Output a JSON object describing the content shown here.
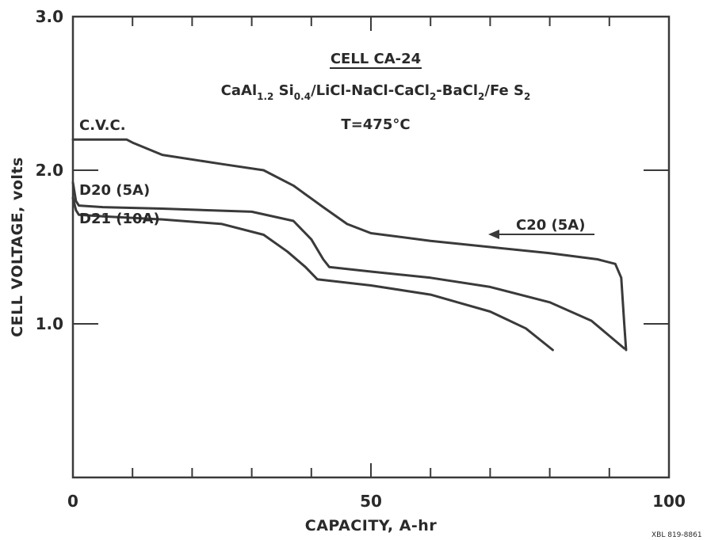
{
  "chart_data": {
    "type": "line",
    "title_lines": [
      "CELL CA-24",
      "CaAl1.2Si0.4/LiCl-NaCl-CaCl2-BaCl2/FeS2",
      "T=475°C"
    ],
    "xlabel": "CAPACITY, A-hr",
    "ylabel": "CELL VOLTAGE, volts",
    "xlim": [
      0,
      100
    ],
    "ylim": [
      0,
      3.0
    ],
    "x_ticks": [
      {
        "value": 0,
        "label": "0"
      },
      {
        "value": 50,
        "label": "50"
      },
      {
        "value": 100,
        "label": "100"
      }
    ],
    "y_ticks": [
      {
        "value": 1.0,
        "label": "1.0"
      },
      {
        "value": 2.0,
        "label": "2.0"
      },
      {
        "value": 3.0,
        "label": "3.0"
      }
    ],
    "grid": false,
    "series": [
      {
        "name": "C20 (5A)",
        "direction_arrow": "left",
        "points": [
          [
            0,
            2.2
          ],
          [
            9,
            2.2
          ],
          [
            10,
            2.18
          ],
          [
            15,
            2.1
          ],
          [
            25,
            2.04
          ],
          [
            32,
            2.0
          ],
          [
            37,
            1.9
          ],
          [
            42,
            1.76
          ],
          [
            46,
            1.65
          ],
          [
            50,
            1.59
          ],
          [
            60,
            1.54
          ],
          [
            70,
            1.5
          ],
          [
            80,
            1.46
          ],
          [
            88,
            1.42
          ],
          [
            91,
            1.39
          ],
          [
            92,
            1.3
          ],
          [
            92.5,
            1.0
          ],
          [
            92.8,
            0.83
          ]
        ]
      },
      {
        "name": "D20 (5A)",
        "points": [
          [
            0,
            1.92
          ],
          [
            0.5,
            1.8
          ],
          [
            1,
            1.77
          ],
          [
            5,
            1.76
          ],
          [
            15,
            1.75
          ],
          [
            30,
            1.73
          ],
          [
            37,
            1.67
          ],
          [
            40,
            1.55
          ],
          [
            42,
            1.42
          ],
          [
            43,
            1.37
          ],
          [
            50,
            1.34
          ],
          [
            60,
            1.3
          ],
          [
            70,
            1.24
          ],
          [
            80,
            1.14
          ],
          [
            87,
            1.02
          ],
          [
            92.5,
            0.84
          ]
        ]
      },
      {
        "name": "D21 (10A)",
        "points": [
          [
            0,
            1.82
          ],
          [
            0.5,
            1.74
          ],
          [
            1,
            1.71
          ],
          [
            5,
            1.7
          ],
          [
            15,
            1.68
          ],
          [
            25,
            1.65
          ],
          [
            32,
            1.58
          ],
          [
            36,
            1.47
          ],
          [
            39,
            1.37
          ],
          [
            41,
            1.29
          ],
          [
            50,
            1.25
          ],
          [
            60,
            1.19
          ],
          [
            70,
            1.08
          ],
          [
            76,
            0.97
          ],
          [
            80.5,
            0.83
          ]
        ]
      }
    ],
    "annotations": [
      "C.V.C."
    ],
    "figure_code": "XBL 819-8861"
  }
}
